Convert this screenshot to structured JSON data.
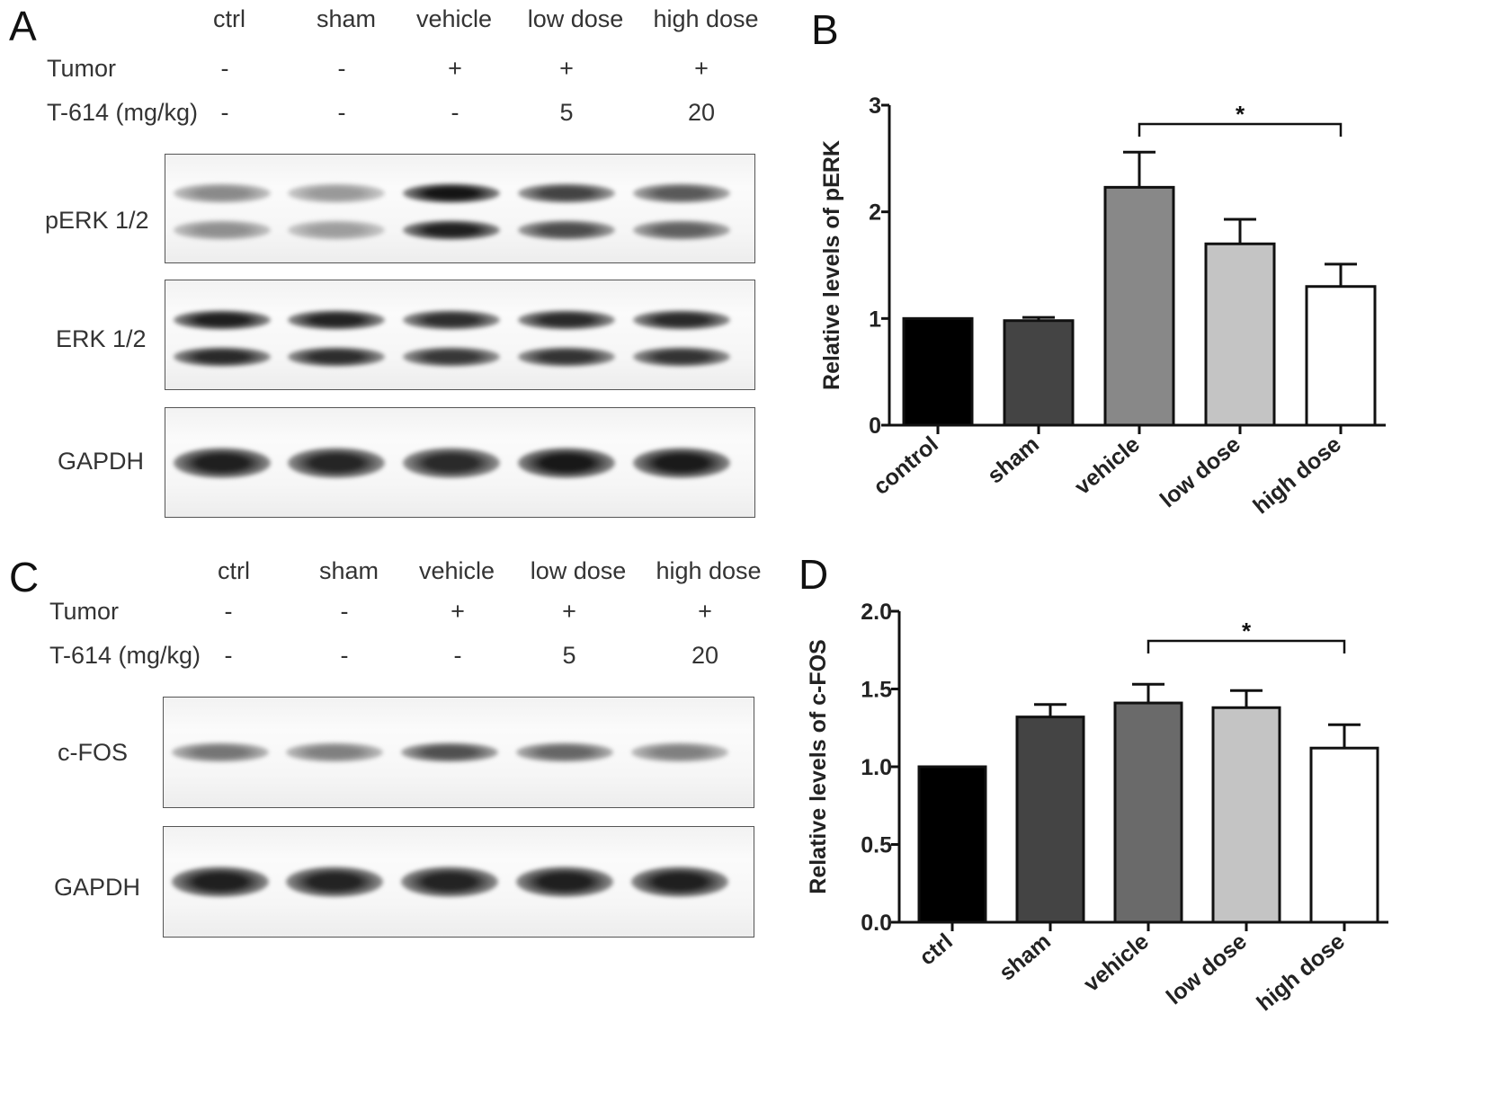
{
  "panels": {
    "a": {
      "letter": "A",
      "lanes": [
        "ctrl",
        "sham",
        "vehicle",
        "low dose",
        "high dose"
      ],
      "rows": [
        {
          "label": "Tumor",
          "values": [
            "-",
            "-",
            "+",
            "+",
            "+"
          ]
        },
        {
          "label": "T-614 (mg/kg)",
          "values": [
            "-",
            "-",
            "-",
            "5",
            "20"
          ]
        }
      ],
      "blots": [
        {
          "label": "pERK 1/2",
          "bands": 2,
          "intensity": [
            0.45,
            0.38,
            1.0,
            0.78,
            0.68
          ]
        },
        {
          "label": "ERK 1/2",
          "bands": 2,
          "intensity": [
            0.95,
            0.93,
            0.88,
            0.9,
            0.9
          ]
        },
        {
          "label": "GAPDH",
          "bands": 1,
          "intensity": [
            0.95,
            0.92,
            0.9,
            0.98,
            0.97
          ]
        }
      ]
    },
    "c": {
      "letter": "C",
      "lanes": [
        "ctrl",
        "sham",
        "vehicle",
        "low dose",
        "high dose"
      ],
      "rows": [
        {
          "label": "Tumor",
          "values": [
            "-",
            "-",
            "+",
            "+",
            "+"
          ]
        },
        {
          "label": "T-614 (mg/kg)",
          "values": [
            "-",
            "-",
            "-",
            "5",
            "20"
          ]
        }
      ],
      "blots": [
        {
          "label": "c-FOS",
          "bands": 1,
          "intensity": [
            0.55,
            0.5,
            0.72,
            0.62,
            0.5
          ]
        },
        {
          "label": "GAPDH",
          "bands": 1,
          "intensity": [
            0.95,
            0.93,
            0.93,
            0.95,
            0.95
          ]
        }
      ]
    }
  },
  "chart_data": [
    {
      "panel_letter": "B",
      "type": "bar",
      "categories": [
        "control",
        "sham",
        "vehicle",
        "low dose",
        "high dose"
      ],
      "values": [
        1.0,
        0.98,
        2.23,
        1.7,
        1.3
      ],
      "errors": [
        0.0,
        0.03,
        0.33,
        0.23,
        0.21
      ],
      "colors": [
        "#000000",
        "#444444",
        "#888888",
        "#c4c4c4",
        "#ffffff"
      ],
      "ylabel": "Relative levels of pERK",
      "ylim": [
        0,
        3
      ],
      "yticks": [
        0,
        1,
        2,
        3
      ],
      "ytick_labels": [
        "0",
        "1",
        "2",
        "3"
      ],
      "significance": {
        "from": 2,
        "to": 4,
        "label": "*"
      }
    },
    {
      "panel_letter": "D",
      "type": "bar",
      "categories": [
        "ctrl",
        "sham",
        "vehicle",
        "low dose",
        "high dose"
      ],
      "values": [
        1.0,
        1.32,
        1.41,
        1.38,
        1.12
      ],
      "errors": [
        0.0,
        0.08,
        0.12,
        0.11,
        0.15
      ],
      "colors": [
        "#000000",
        "#444444",
        "#6a6a6a",
        "#c4c4c4",
        "#ffffff"
      ],
      "ylabel": "Relative levels of c-FOS",
      "ylim": [
        0,
        2
      ],
      "yticks": [
        0,
        0.5,
        1,
        1.5,
        2
      ],
      "ytick_labels": [
        "0.0",
        "0.5",
        "1.0",
        "1.5",
        "2.0"
      ],
      "significance": {
        "from": 2,
        "to": 4,
        "label": "*"
      }
    }
  ]
}
